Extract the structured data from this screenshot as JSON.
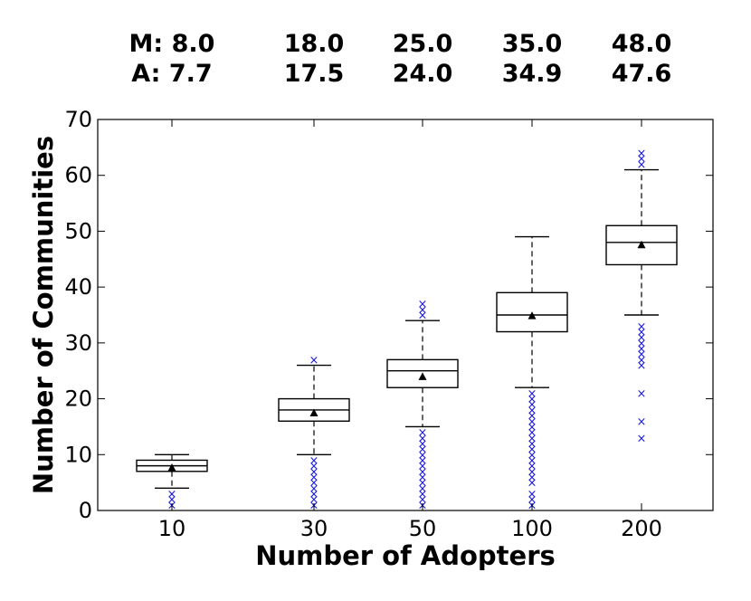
{
  "chart_data": {
    "type": "box",
    "xlabel": "Number of Adopters",
    "ylabel": "Number of Communities",
    "ylim": [
      0,
      70
    ],
    "yticks": [
      "0",
      "10",
      "20",
      "30",
      "40",
      "50",
      "60",
      "70"
    ],
    "median_prefix": "M: ",
    "mean_prefix": "A: ",
    "outlier_symbol": "×",
    "colors": {
      "box": "#000000",
      "median": "#000000",
      "mean_marker": "#000000",
      "outlier": "#1a1adb"
    },
    "categories": [
      {
        "label": "10",
        "median_text": "8.0",
        "mean_text": "7.7",
        "whisker_low": 4,
        "q1": 7,
        "median": 8,
        "q3": 9,
        "whisker_high": 10,
        "mean": 7.7,
        "outliers": [
          1,
          2,
          3
        ]
      },
      {
        "label": "30",
        "median_text": "18.0",
        "mean_text": "17.5",
        "whisker_low": 10,
        "q1": 16,
        "median": 18,
        "q3": 20,
        "whisker_high": 26,
        "mean": 17.5,
        "outliers": [
          1,
          2,
          3,
          4,
          5,
          6,
          7,
          8,
          9,
          27
        ]
      },
      {
        "label": "50",
        "median_text": "25.0",
        "mean_text": "24.0",
        "whisker_low": 15,
        "q1": 22,
        "median": 25,
        "q3": 27,
        "whisker_high": 34,
        "mean": 24.0,
        "outliers": [
          1,
          2,
          3,
          4,
          5,
          6,
          7,
          8,
          9,
          10,
          11,
          12,
          13,
          14,
          35,
          36,
          37
        ]
      },
      {
        "label": "100",
        "median_text": "35.0",
        "mean_text": "34.9",
        "whisker_low": 22,
        "q1": 32,
        "median": 35,
        "q3": 39,
        "whisker_high": 49,
        "mean": 34.9,
        "outliers": [
          1,
          2,
          3,
          5,
          6,
          7,
          8,
          9,
          10,
          11,
          12,
          13,
          14,
          15,
          16,
          17,
          18,
          19,
          20,
          21
        ]
      },
      {
        "label": "200",
        "median_text": "48.0",
        "mean_text": "47.6",
        "whisker_low": 35,
        "q1": 44,
        "median": 48,
        "q3": 51,
        "whisker_high": 61,
        "mean": 47.6,
        "outliers": [
          13,
          16,
          21,
          26,
          27,
          28,
          29,
          30,
          31,
          32,
          33,
          62,
          63,
          64
        ]
      }
    ]
  }
}
